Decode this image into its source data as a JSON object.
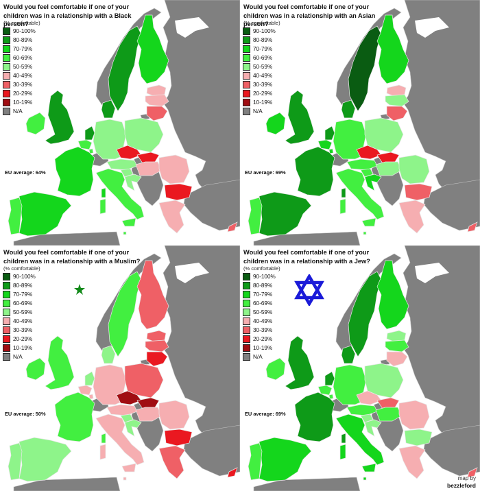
{
  "legend": {
    "subtitle": "(% comfortable)",
    "categories": [
      {
        "key": "c90",
        "label": "90-100%",
        "color": "#0a5c12"
      },
      {
        "key": "c80",
        "label": "80-89%",
        "color": "#0e9a18"
      },
      {
        "key": "c70",
        "label": "70-79%",
        "color": "#14d61c"
      },
      {
        "key": "c60",
        "label": "60-69%",
        "color": "#42ef40"
      },
      {
        "key": "c50",
        "label": "50-59%",
        "color": "#8ef48a"
      },
      {
        "key": "c40",
        "label": "40-49%",
        "color": "#f6aeb1"
      },
      {
        "key": "c30",
        "label": "30-39%",
        "color": "#ef6066"
      },
      {
        "key": "c20",
        "label": "20-29%",
        "color": "#ea1820"
      },
      {
        "key": "c10",
        "label": "10-19%",
        "color": "#a00d12"
      },
      {
        "key": "na",
        "label": "N/A",
        "color": "#808080"
      }
    ]
  },
  "panels": [
    {
      "title": "Would you feel comfortable if one of your children was in a relationship with a Black person?",
      "eu_average": "EU average: 64%",
      "symbol": "none",
      "countries": {
        "sweden": "c80",
        "finland": "c70",
        "estonia": "c40",
        "latvia": "c40",
        "lithuania": "c30",
        "denmark": "c80",
        "uk": "c80",
        "ireland": "c60",
        "netherlands": "c80",
        "belgium": "c60",
        "luxembourg": "c60",
        "france": "c70",
        "spain": "c70",
        "portugal": "c60",
        "germany": "c50",
        "poland": "c50",
        "czechia": "c20",
        "slovakia": "c20",
        "austria": "c50",
        "hungary": "c40",
        "slovenia": "c50",
        "croatia": "c50",
        "romania": "c40",
        "bulgaria": "c20",
        "greece": "c40",
        "italy": "c60",
        "cyprus": "c30",
        "malta": "c60"
      }
    },
    {
      "title": "Would you feel comfortable if one of your children was in a relationship with an Asian person?",
      "eu_average": "EU average: 69%",
      "symbol": "none",
      "countries": {
        "sweden": "c90",
        "finland": "c70",
        "estonia": "c40",
        "latvia": "c50",
        "lithuania": "c30",
        "denmark": "c80",
        "uk": "c80",
        "ireland": "c70",
        "netherlands": "c80",
        "belgium": "c70",
        "luxembourg": "c70",
        "france": "c80",
        "spain": "c80",
        "portugal": "c60",
        "germany": "c60",
        "poland": "c50",
        "czechia": "c20",
        "slovakia": "c20",
        "austria": "c60",
        "hungary": "c50",
        "slovenia": "c60",
        "croatia": "c70",
        "romania": "c50",
        "bulgaria": "c30",
        "greece": "c40",
        "italy": "c60",
        "cyprus": "c30",
        "malta": "c60"
      }
    },
    {
      "title": "Would you feel comfortable if one of your children was in a relationship with a Muslim?",
      "eu_average": "EU average: 50%",
      "symbol": "crescent-star",
      "countries": {
        "sweden": "c60",
        "finland": "c30",
        "estonia": "c30",
        "latvia": "c30",
        "lithuania": "c20",
        "denmark": "c50",
        "uk": "c60",
        "ireland": "c60",
        "netherlands": "c50",
        "belgium": "c40",
        "luxembourg": "c40",
        "france": "c60",
        "spain": "c50",
        "portugal": "c50",
        "germany": "c40",
        "poland": "c30",
        "czechia": "c10",
        "slovakia": "c10",
        "austria": "c40",
        "hungary": "c40",
        "slovenia": "c50",
        "croatia": "c50",
        "romania": "c40",
        "bulgaria": "c20",
        "greece": "c30",
        "italy": "c40",
        "cyprus": "c20",
        "malta": "c40"
      }
    },
    {
      "title": "Would you feel comfortable if one of your children was in a relationship with a Jew?",
      "eu_average": "EU average: 69%",
      "symbol": "star-of-david",
      "countries": {
        "sweden": "c80",
        "finland": "c70",
        "estonia": "c50",
        "latvia": "c60",
        "lithuania": "c40",
        "denmark": "c80",
        "uk": "c80",
        "ireland": "c60",
        "netherlands": "c80",
        "belgium": "c60",
        "luxembourg": "c60",
        "france": "c80",
        "spain": "c70",
        "portugal": "c60",
        "germany": "c60",
        "poland": "c50",
        "czechia": "c40",
        "slovakia": "c30",
        "austria": "c60",
        "hungary": "c60",
        "slovenia": "c50",
        "croatia": "c50",
        "romania": "c40",
        "bulgaria": "c50",
        "greece": "c40",
        "italy": "c70",
        "cyprus": "c30",
        "malta": "c70"
      }
    }
  ],
  "credit": {
    "line1": "map by",
    "line2": "bezzleford"
  },
  "symbols": {
    "crescent_color": "#138a1a",
    "star_of_david_color": "#1a1ad8"
  }
}
